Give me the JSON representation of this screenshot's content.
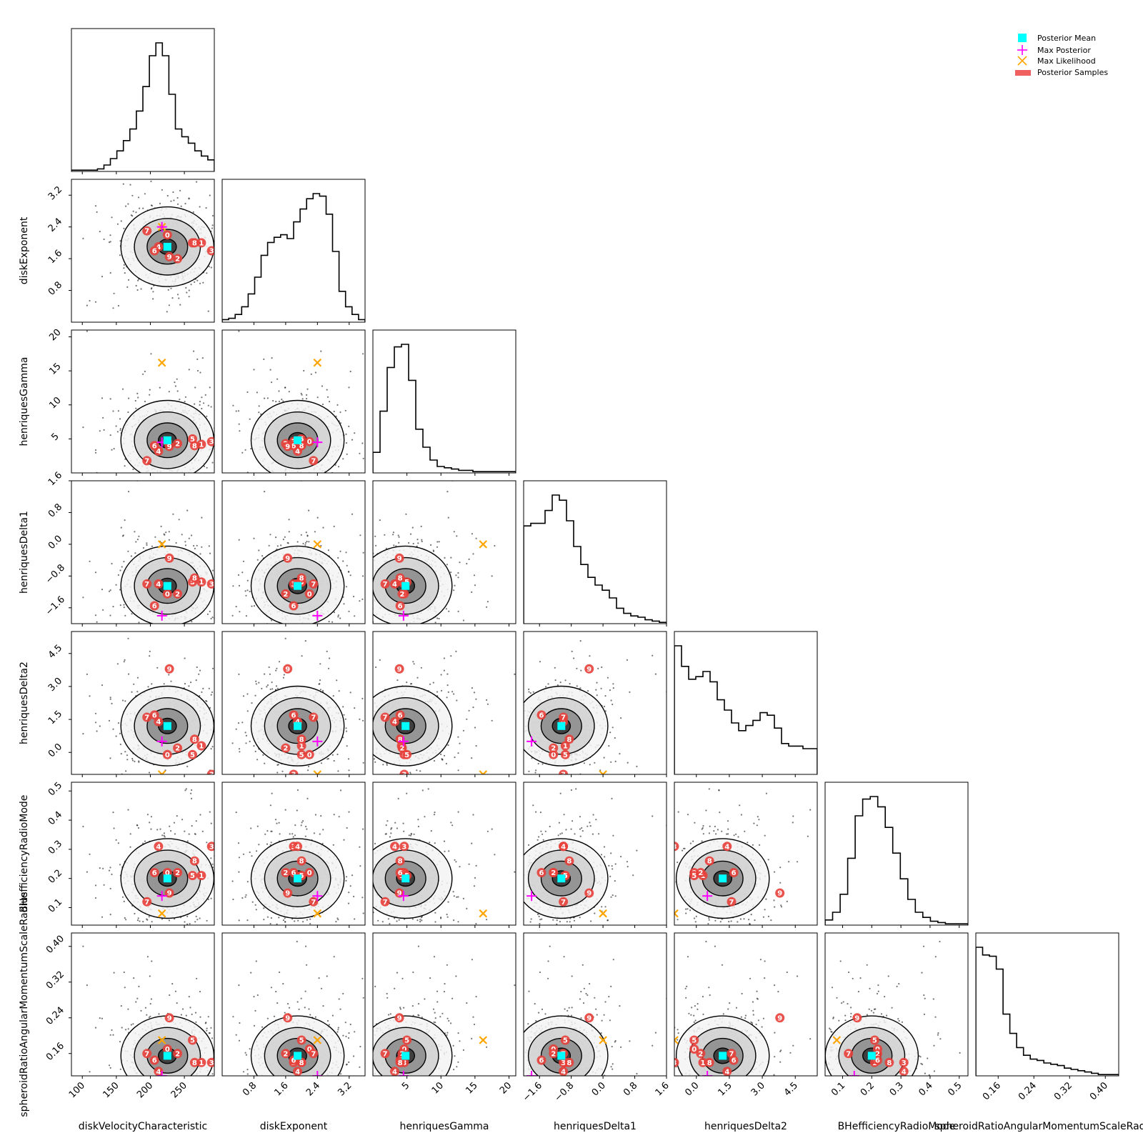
{
  "chart_data": {
    "type": "scatter",
    "subtype": "corner-plot",
    "parameters": [
      {
        "name": "diskVelocityCharacteristic",
        "range": [
          84,
          294
        ],
        "ticks": [
          100,
          150,
          200,
          250
        ],
        "tick_labels": [
          "100",
          "150",
          "200",
          "250"
        ],
        "posterior_mean": 225,
        "max_posterior": 217,
        "max_likelihood": 217
      },
      {
        "name": "diskExponent",
        "range": [
          0.0,
          3.6
        ],
        "ticks": [
          0.8,
          1.6,
          2.4,
          3.2
        ],
        "tick_labels": [
          "0.8",
          "1.6",
          "2.4",
          "3.2"
        ],
        "posterior_mean": 1.9,
        "max_posterior": 2.4,
        "max_likelihood": 2.4
      },
      {
        "name": "henriquesGamma",
        "range": [
          0.0,
          21.0
        ],
        "ticks": [
          5,
          10,
          15,
          20
        ],
        "tick_labels": [
          "5",
          "10",
          "15",
          "20"
        ],
        "posterior_mean": 4.8,
        "max_posterior": 4.5,
        "max_likelihood": 16.2
      },
      {
        "name": "henriquesDelta1",
        "range": [
          -2.0,
          1.6
        ],
        "ticks": [
          -1.6,
          -0.8,
          0.0,
          0.8,
          1.6
        ],
        "tick_labels": [
          "−1.6",
          "−0.8",
          "0.0",
          "0.8",
          "1.6"
        ],
        "posterior_mean": -1.05,
        "max_posterior": -1.8,
        "max_likelihood": 0.0
      },
      {
        "name": "henriquesDelta2",
        "range": [
          -1.0,
          5.5
        ],
        "ticks": [
          0.0,
          1.5,
          3.0,
          4.5
        ],
        "tick_labels": [
          "0.0",
          "1.5",
          "3.0",
          "4.5"
        ],
        "posterior_mean": 1.2,
        "max_posterior": 0.5,
        "max_likelihood": -1.0
      },
      {
        "name": "BHefficiencyRadioMode",
        "range": [
          0.04,
          0.53
        ],
        "ticks": [
          0.1,
          0.2,
          0.3,
          0.4,
          0.5
        ],
        "tick_labels": [
          "0.1",
          "0.2",
          "0.3",
          "0.4",
          "0.5"
        ],
        "posterior_mean": 0.2,
        "max_posterior": 0.14,
        "max_likelihood": 0.08
      },
      {
        "name": "spheroidRatioAngularMomentumScaleRadius",
        "range": [
          0.11,
          0.43
        ],
        "ticks": [
          0.16,
          0.24,
          0.32,
          0.4
        ],
        "tick_labels": [
          "0.16",
          "0.24",
          "0.32",
          "0.40"
        ],
        "posterior_mean": 0.155,
        "max_posterior": 0.11,
        "max_likelihood": 0.19
      }
    ],
    "diagonal_histograms": [
      [
        0.01,
        0.01,
        0.01,
        0.01,
        0.02,
        0.05,
        0.1,
        0.16,
        0.24,
        0.33,
        0.47,
        0.66,
        0.9,
        1.0,
        0.9,
        0.6,
        0.33,
        0.27,
        0.22,
        0.16,
        0.12,
        0.09
      ],
      [
        0.02,
        0.03,
        0.06,
        0.12,
        0.22,
        0.35,
        0.52,
        0.62,
        0.66,
        0.68,
        0.65,
        0.78,
        0.88,
        0.96,
        1.0,
        0.98,
        0.84,
        0.55,
        0.24,
        0.12,
        0.06,
        0.02
      ],
      [
        0.16,
        0.48,
        0.82,
        0.98,
        1.0,
        0.72,
        0.34,
        0.2,
        0.1,
        0.05,
        0.04,
        0.03,
        0.02,
        0.02,
        0.01,
        0.01,
        0.01,
        0.01,
        0.01,
        0.01
      ],
      [
        0.76,
        0.78,
        0.78,
        0.88,
        1.0,
        0.96,
        0.8,
        0.6,
        0.46,
        0.36,
        0.3,
        0.26,
        0.2,
        0.12,
        0.08,
        0.06,
        0.05,
        0.03,
        0.02,
        0.01
      ],
      [
        1.0,
        0.84,
        0.74,
        0.76,
        0.8,
        0.72,
        0.58,
        0.5,
        0.4,
        0.34,
        0.38,
        0.42,
        0.48,
        0.46,
        0.36,
        0.24,
        0.22,
        0.22,
        0.2,
        0.2
      ],
      [
        0.04,
        0.1,
        0.24,
        0.52,
        0.85,
        0.98,
        1.0,
        0.92,
        0.76,
        0.56,
        0.36,
        0.2,
        0.1,
        0.06,
        0.03,
        0.02,
        0.01,
        0.01,
        0.01
      ],
      [
        1.0,
        0.94,
        0.93,
        0.83,
        0.48,
        0.33,
        0.22,
        0.16,
        0.13,
        0.12,
        0.1,
        0.09,
        0.08,
        0.06,
        0.05,
        0.04,
        0.03,
        0.02,
        0.01,
        0.01,
        0.01
      ]
    ],
    "sample_labels": [
      "0",
      "1",
      "2",
      "3",
      "4",
      "5",
      "6",
      "7",
      "8",
      "9"
    ],
    "samples": [
      [
        225,
        2.2,
        4.6,
        -1.25,
        -0.1,
        0.22,
        0.17
      ],
      [
        275,
        2.0,
        4.2,
        -0.95,
        0.3,
        0.21,
        0.14
      ],
      [
        240,
        1.6,
        4.3,
        -1.25,
        0.2,
        0.22,
        0.16
      ],
      [
        290,
        1.8,
        4.6,
        -1.0,
        -1.0,
        0.31,
        0.14
      ],
      [
        212,
        1.9,
        3.2,
        -1.0,
        1.4,
        0.31,
        0.12
      ],
      [
        262,
        2.0,
        5.0,
        -0.95,
        -0.1,
        0.21,
        0.19
      ],
      [
        206,
        1.8,
        4.0,
        -1.55,
        1.7,
        0.22,
        0.145
      ],
      [
        195,
        2.3,
        1.8,
        -1.0,
        1.6,
        0.12,
        0.16
      ],
      [
        265,
        2.0,
        4.0,
        -0.85,
        0.6,
        0.26,
        0.14
      ],
      [
        228,
        1.65,
        3.9,
        -0.35,
        3.8,
        0.15,
        0.24
      ]
    ],
    "legend": [
      "Posterior Mean",
      "Max Posterior",
      "Max Likelihood",
      "Posterior Samples"
    ],
    "legend_position": "top-right",
    "grid": false,
    "colors": {
      "posterior_mean": "#00ffff",
      "max_posterior": "#ff00ff",
      "max_likelihood": "#ffa500",
      "posterior_samples": "#e8403a",
      "hist_line": "#000000"
    }
  }
}
